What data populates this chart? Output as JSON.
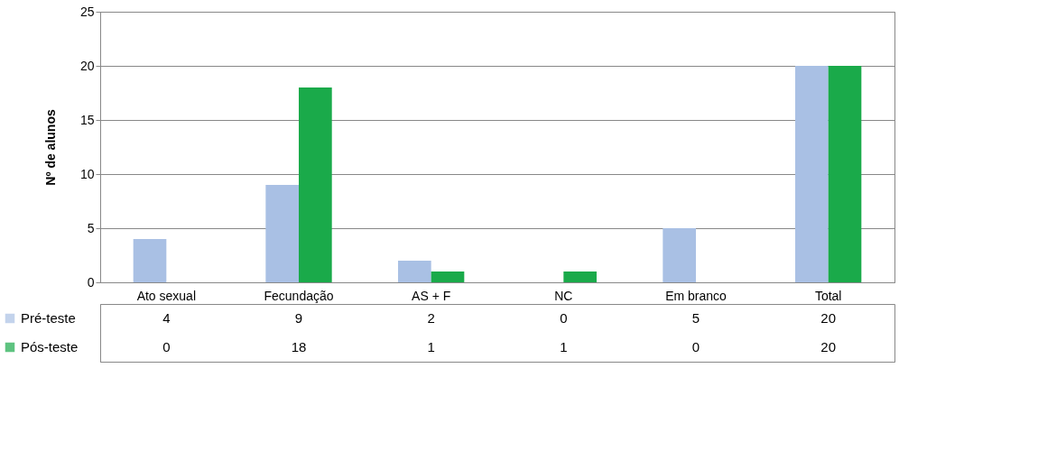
{
  "chart_data": {
    "type": "bar",
    "ylabel": "Nº de alunos",
    "categories": [
      "Ato sexual",
      "Fecundação",
      "AS + F",
      "NC",
      "Em branco",
      "Total"
    ],
    "series": [
      {
        "name": "Pré-teste",
        "color": "#a9c0e4",
        "values": [
          4,
          9,
          2,
          0,
          5,
          20
        ]
      },
      {
        "name": "Pós-teste",
        "color": "#1aaa4a",
        "values": [
          0,
          18,
          1,
          1,
          0,
          20
        ]
      }
    ],
    "ylim": [
      0,
      25
    ],
    "yticks": [
      0,
      5,
      10,
      15,
      20,
      25
    ],
    "grid": "y",
    "legend": "bottom left",
    "data_labels": true
  }
}
